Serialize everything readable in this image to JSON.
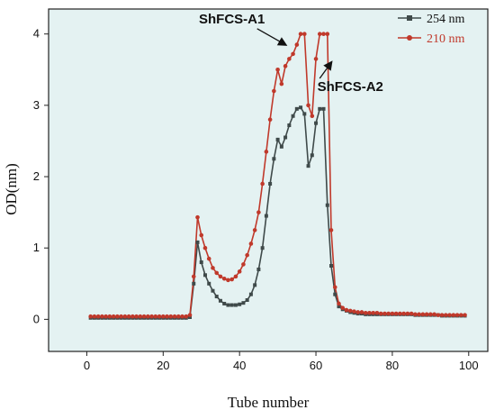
{
  "chart_data": {
    "type": "line",
    "xlabel": "Tube number",
    "ylabel": "OD(nm)",
    "xlim": [
      -10,
      105
    ],
    "ylim": [
      -0.45,
      4.35
    ],
    "xticks": [
      0,
      20,
      40,
      60,
      80,
      100
    ],
    "yticks": [
      0,
      1,
      2,
      3,
      4
    ],
    "legend": "top-right",
    "background": "#e4f2f2",
    "grid": false,
    "series": [
      {
        "name": "254 nm",
        "color": "#3f4a4a",
        "marker": "square",
        "x": [
          1,
          2,
          3,
          4,
          5,
          6,
          7,
          8,
          9,
          10,
          11,
          12,
          13,
          14,
          15,
          16,
          17,
          18,
          19,
          20,
          21,
          22,
          23,
          24,
          25,
          26,
          27,
          28,
          29,
          30,
          31,
          32,
          33,
          34,
          35,
          36,
          37,
          38,
          39,
          40,
          41,
          42,
          43,
          44,
          45,
          46,
          47,
          48,
          49,
          50,
          51,
          52,
          53,
          54,
          55,
          56,
          57,
          58,
          59,
          60,
          61,
          62,
          63,
          64,
          65,
          66,
          67,
          68,
          69,
          70,
          71,
          72,
          73,
          74,
          75,
          76,
          77,
          78,
          79,
          80,
          81,
          82,
          83,
          84,
          85,
          86,
          87,
          88,
          89,
          90,
          91,
          92,
          93,
          94,
          95,
          96,
          97,
          98,
          99
        ],
        "y": [
          0.02,
          0.02,
          0.02,
          0.02,
          0.02,
          0.02,
          0.02,
          0.02,
          0.02,
          0.02,
          0.02,
          0.02,
          0.02,
          0.02,
          0.02,
          0.02,
          0.02,
          0.02,
          0.02,
          0.02,
          0.02,
          0.02,
          0.02,
          0.02,
          0.02,
          0.02,
          0.03,
          0.5,
          1.08,
          0.8,
          0.62,
          0.5,
          0.4,
          0.32,
          0.26,
          0.22,
          0.2,
          0.2,
          0.2,
          0.21,
          0.23,
          0.27,
          0.35,
          0.48,
          0.7,
          1.0,
          1.45,
          1.9,
          2.25,
          2.52,
          2.42,
          2.55,
          2.72,
          2.85,
          2.95,
          2.97,
          2.88,
          2.15,
          2.3,
          2.75,
          2.95,
          2.95,
          1.6,
          0.75,
          0.35,
          0.18,
          0.14,
          0.12,
          0.1,
          0.09,
          0.08,
          0.08,
          0.07,
          0.07,
          0.07,
          0.07,
          0.07,
          0.07,
          0.07,
          0.07,
          0.07,
          0.07,
          0.07,
          0.07,
          0.07,
          0.06,
          0.06,
          0.06,
          0.06,
          0.06,
          0.06,
          0.06,
          0.05,
          0.05,
          0.05,
          0.05,
          0.05,
          0.05,
          0.05
        ]
      },
      {
        "name": "210 nm",
        "color": "#c0392b",
        "marker": "circle",
        "x": [
          1,
          2,
          3,
          4,
          5,
          6,
          7,
          8,
          9,
          10,
          11,
          12,
          13,
          14,
          15,
          16,
          17,
          18,
          19,
          20,
          21,
          22,
          23,
          24,
          25,
          26,
          27,
          28,
          29,
          30,
          31,
          32,
          33,
          34,
          35,
          36,
          37,
          38,
          39,
          40,
          41,
          42,
          43,
          44,
          45,
          46,
          47,
          48,
          49,
          50,
          51,
          52,
          53,
          54,
          55,
          56,
          57,
          58,
          59,
          60,
          61,
          62,
          63,
          64,
          65,
          66,
          67,
          68,
          69,
          70,
          71,
          72,
          73,
          74,
          75,
          76,
          77,
          78,
          79,
          80,
          81,
          82,
          83,
          84,
          85,
          86,
          87,
          88,
          89,
          90,
          91,
          92,
          93,
          94,
          95,
          96,
          97,
          98,
          99
        ],
        "y": [
          0.04,
          0.04,
          0.04,
          0.04,
          0.04,
          0.04,
          0.04,
          0.04,
          0.04,
          0.04,
          0.04,
          0.04,
          0.04,
          0.04,
          0.04,
          0.04,
          0.04,
          0.04,
          0.04,
          0.04,
          0.04,
          0.04,
          0.04,
          0.04,
          0.04,
          0.04,
          0.06,
          0.6,
          1.43,
          1.18,
          1.0,
          0.85,
          0.72,
          0.65,
          0.6,
          0.57,
          0.55,
          0.56,
          0.6,
          0.67,
          0.77,
          0.9,
          1.06,
          1.25,
          1.5,
          1.9,
          2.35,
          2.8,
          3.2,
          3.5,
          3.3,
          3.55,
          3.65,
          3.72,
          3.85,
          4.0,
          4.0,
          3.0,
          2.85,
          3.65,
          4.0,
          4.0,
          4.0,
          1.25,
          0.45,
          0.22,
          0.16,
          0.13,
          0.12,
          0.11,
          0.1,
          0.1,
          0.09,
          0.09,
          0.09,
          0.09,
          0.08,
          0.08,
          0.08,
          0.08,
          0.08,
          0.08,
          0.08,
          0.08,
          0.08,
          0.07,
          0.07,
          0.07,
          0.07,
          0.07,
          0.07,
          0.06,
          0.06,
          0.06,
          0.06,
          0.06,
          0.06,
          0.06,
          0.06
        ]
      }
    ],
    "annotations": [
      {
        "text": "ShFCS-A1",
        "x": 38,
        "y": 4.15,
        "arrow_to": [
          52,
          3.85
        ]
      },
      {
        "text": "ShFCS-A2",
        "x": 69,
        "y": 3.2,
        "arrow_to": [
          64,
          3.6
        ]
      }
    ]
  }
}
